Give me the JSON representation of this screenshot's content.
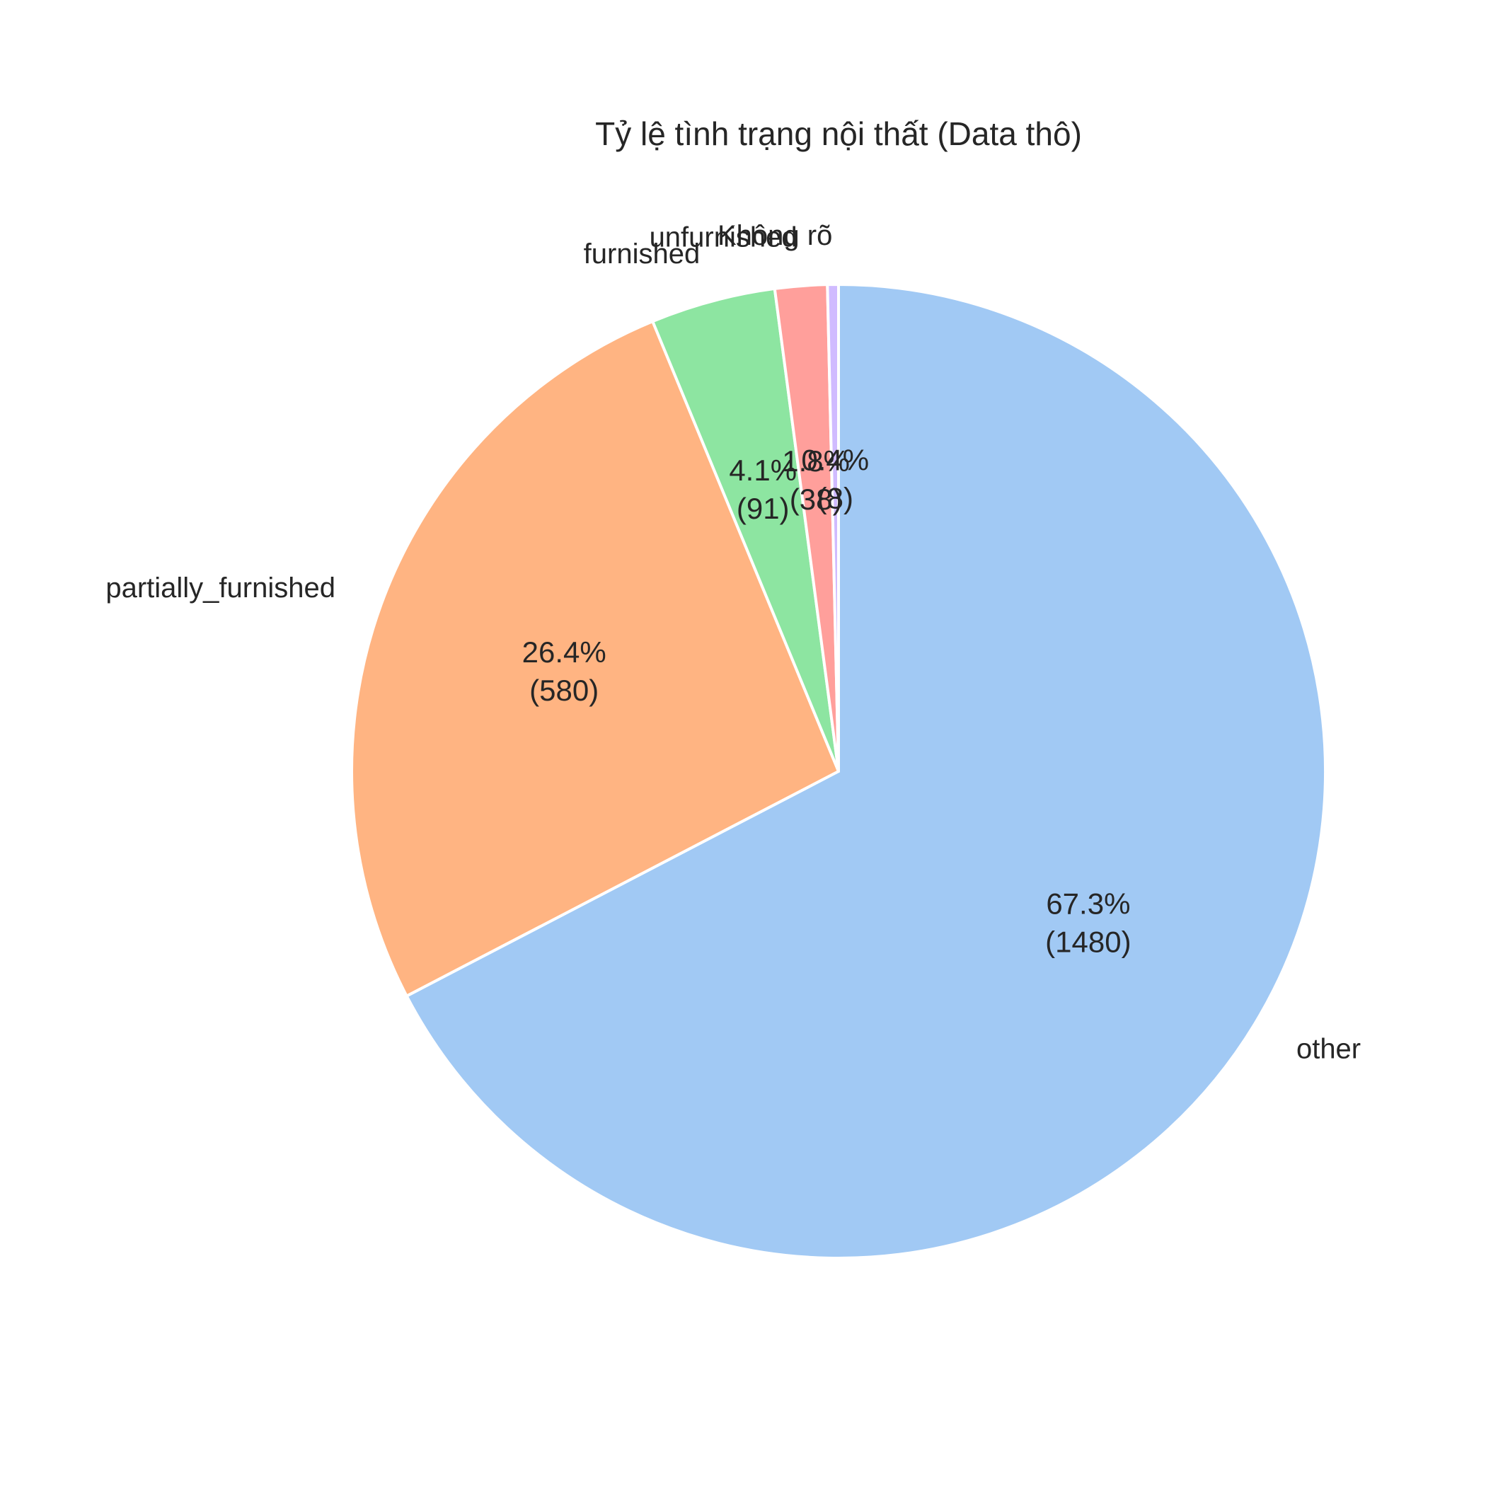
{
  "chart_data": {
    "type": "pie",
    "title": "Tỷ lệ tình trạng nội thất (Data thô)",
    "slices": [
      {
        "label": "other",
        "value": 1480,
        "pct_text": "67.3%",
        "count_text": "(1480)",
        "color": "#a1c9f4"
      },
      {
        "label": "partially_furnished",
        "value": 580,
        "pct_text": "26.4%",
        "count_text": "(580)",
        "color": "#ffb482"
      },
      {
        "label": "furnished",
        "value": 91,
        "pct_text": "4.1%",
        "count_text": "(91)",
        "color": "#8de5a1"
      },
      {
        "label": "unfurnished",
        "value": 38,
        "pct_text": "1.8%",
        "count_text": "(38)",
        "color": "#ff9f9b"
      },
      {
        "label": "Không rõ",
        "value": 8,
        "pct_text": "0.4%",
        "count_text": "(8)",
        "color": "#d0bbff"
      }
    ],
    "start_angle_deg": 90,
    "direction": "clockwise",
    "legend": "none"
  }
}
